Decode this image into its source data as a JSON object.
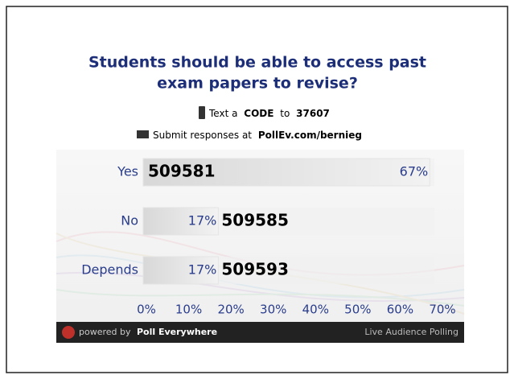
{
  "chart_data": {
    "type": "hbar",
    "title_lines": [
      "Students should be able to access past",
      "exam papers to revise?"
    ],
    "text_line": [
      "Text a",
      "CODE",
      "to",
      "37607"
    ],
    "web_line": [
      "Submit responses at",
      "PollEv.com/bernieg"
    ],
    "categories": [
      "Yes",
      "No",
      "Depends"
    ],
    "codes": [
      "509581",
      "509585",
      "509593"
    ],
    "values": [
      67,
      17,
      17
    ],
    "value_labels": [
      "67%",
      "17%",
      "17%"
    ],
    "color": "#e4e4e4",
    "xlim": [
      0,
      70
    ],
    "xticks": [
      {
        "value": 0,
        "label": "0%"
      },
      {
        "value": 10,
        "label": "10%"
      },
      {
        "value": 20,
        "label": "20%"
      },
      {
        "value": 30,
        "label": "30%"
      },
      {
        "value": 40,
        "label": "40%"
      },
      {
        "value": 50,
        "label": "50%"
      },
      {
        "value": 60,
        "label": "60%"
      },
      {
        "value": 70,
        "label": "70%"
      }
    ],
    "footer": [
      "powered by",
      "Poll Everywhere",
      "Live Audience Polling"
    ]
  }
}
